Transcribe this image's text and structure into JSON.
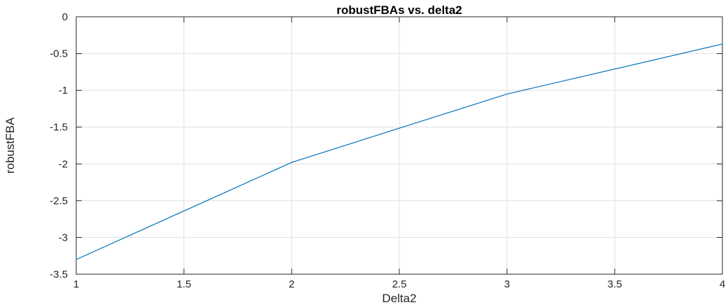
{
  "chart_data": {
    "type": "line",
    "title": "robustFBAs vs. delta2",
    "xlabel": "Delta2",
    "ylabel": "robustFBA",
    "xlim": [
      1,
      4
    ],
    "ylim": [
      -3.5,
      0
    ],
    "xticks": [
      1,
      1.5,
      2,
      2.5,
      3,
      3.5,
      4
    ],
    "xtick_labels": [
      "1",
      "1.5",
      "2",
      "2.5",
      "3",
      "3.5",
      "4"
    ],
    "yticks": [
      -3.5,
      -3,
      -2.5,
      -2,
      -1.5,
      -1,
      -0.5,
      0
    ],
    "ytick_labels": [
      "-3.5",
      "-3",
      "-2.5",
      "-2",
      "-1.5",
      "-1",
      "-0.5",
      "0"
    ],
    "grid": true,
    "legend": false,
    "series": [
      {
        "x": [
          1,
          2,
          3,
          4
        ],
        "values": [
          -3.3,
          -1.98,
          -1.05,
          -0.37
        ],
        "color": "#0072BD"
      }
    ]
  }
}
